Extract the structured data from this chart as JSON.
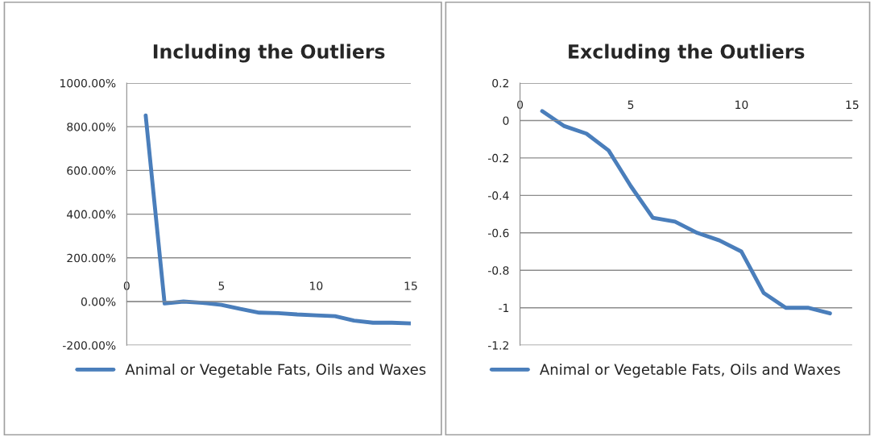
{
  "chart_data": [
    {
      "type": "line",
      "title": "Including the Outliers",
      "x": [
        1,
        2,
        3,
        4,
        5,
        6,
        7,
        8,
        9,
        10,
        11,
        12,
        13,
        14,
        15
      ],
      "series": [
        {
          "name": "Animal or Vegetable Fats, Oils and Waxes",
          "color": "#4a7ebb",
          "values": [
            852,
            -9,
            0,
            -6,
            -15,
            -34,
            -51,
            -53,
            -59,
            -63,
            -67,
            -87,
            -97,
            -97,
            -100
          ]
        }
      ],
      "xlim": [
        0,
        15
      ],
      "xticks": [
        0,
        5,
        10,
        15
      ],
      "ylim": [
        -200,
        1000
      ],
      "yticks": [
        {
          "value": -200,
          "label": "-200.00%"
        },
        {
          "value": 0,
          "label": "0.00%"
        },
        {
          "value": 200,
          "label": "200.00%"
        },
        {
          "value": 400,
          "label": "400.00%"
        },
        {
          "value": 600,
          "label": "600.00%"
        },
        {
          "value": 800,
          "label": "800.00%"
        },
        {
          "value": 1000,
          "label": "1000.00%"
        }
      ],
      "grid": "y",
      "legend": "bottom"
    },
    {
      "type": "line",
      "title": "Excluding the Outliers",
      "x": [
        1,
        2,
        3,
        4,
        5,
        6,
        7,
        8,
        9,
        10,
        11,
        12,
        13,
        14
      ],
      "series": [
        {
          "name": "Animal or Vegetable Fats, Oils and Waxes",
          "color": "#4a7ebb",
          "values": [
            0.05,
            -0.03,
            -0.07,
            -0.16,
            -0.35,
            -0.52,
            -0.54,
            -0.6,
            -0.64,
            -0.7,
            -0.92,
            -1.0,
            -1.0,
            -1.03
          ]
        }
      ],
      "xlim": [
        0,
        15
      ],
      "xticks": [
        0,
        5,
        10,
        15
      ],
      "ylim": [
        -1.2,
        0.2
      ],
      "yticks": [
        -1.2,
        -1,
        -0.8,
        -0.6,
        -0.4,
        -0.2,
        0,
        0.2
      ],
      "grid": "y",
      "legend": "bottom"
    }
  ]
}
